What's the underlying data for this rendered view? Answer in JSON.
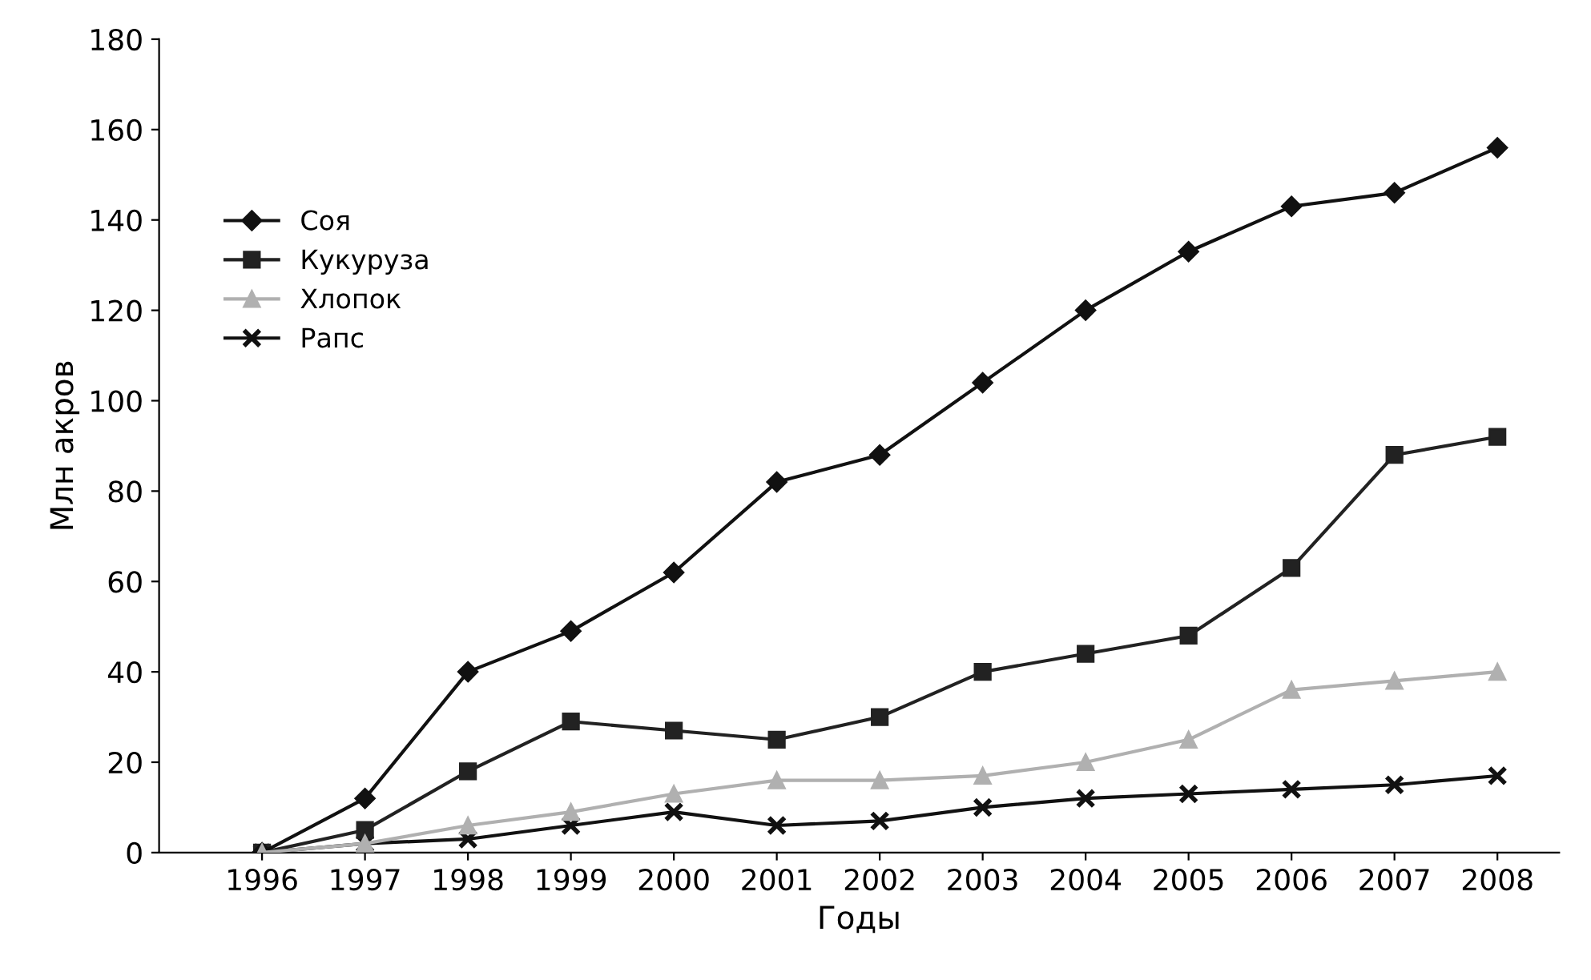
{
  "chart_data": {
    "type": "line",
    "xlabel": "Годы",
    "ylabel": "Млн акров",
    "categories": [
      "1996",
      "1997",
      "1998",
      "1999",
      "2000",
      "2001",
      "2002",
      "2003",
      "2004",
      "2005",
      "2006",
      "2007",
      "2008"
    ],
    "series": [
      {
        "name": "Соя",
        "color": "#111111",
        "marker": "diamond",
        "values": [
          0,
          12,
          40,
          49,
          62,
          82,
          88,
          104,
          120,
          133,
          143,
          146,
          156
        ]
      },
      {
        "name": "Кукуруза",
        "color": "#222222",
        "marker": "square",
        "values": [
          0,
          5,
          18,
          29,
          27,
          25,
          30,
          40,
          44,
          48,
          63,
          88,
          92
        ]
      },
      {
        "name": "Хлопок",
        "color": "#b0b0b0",
        "marker": "triangle",
        "values": [
          0,
          2,
          6,
          9,
          13,
          16,
          16,
          17,
          20,
          25,
          36,
          38,
          40
        ]
      },
      {
        "name": "Рапс",
        "color": "#111111",
        "marker": "cross",
        "values": [
          0,
          2,
          3,
          6,
          9,
          6,
          7,
          10,
          12,
          13,
          14,
          15,
          17
        ]
      }
    ],
    "ylim": [
      0,
      180
    ],
    "yticks": [
      0,
      20,
      40,
      60,
      80,
      100,
      120,
      140,
      160,
      180
    ],
    "grid": false,
    "legend": "top left",
    "line_style": "solid"
  }
}
